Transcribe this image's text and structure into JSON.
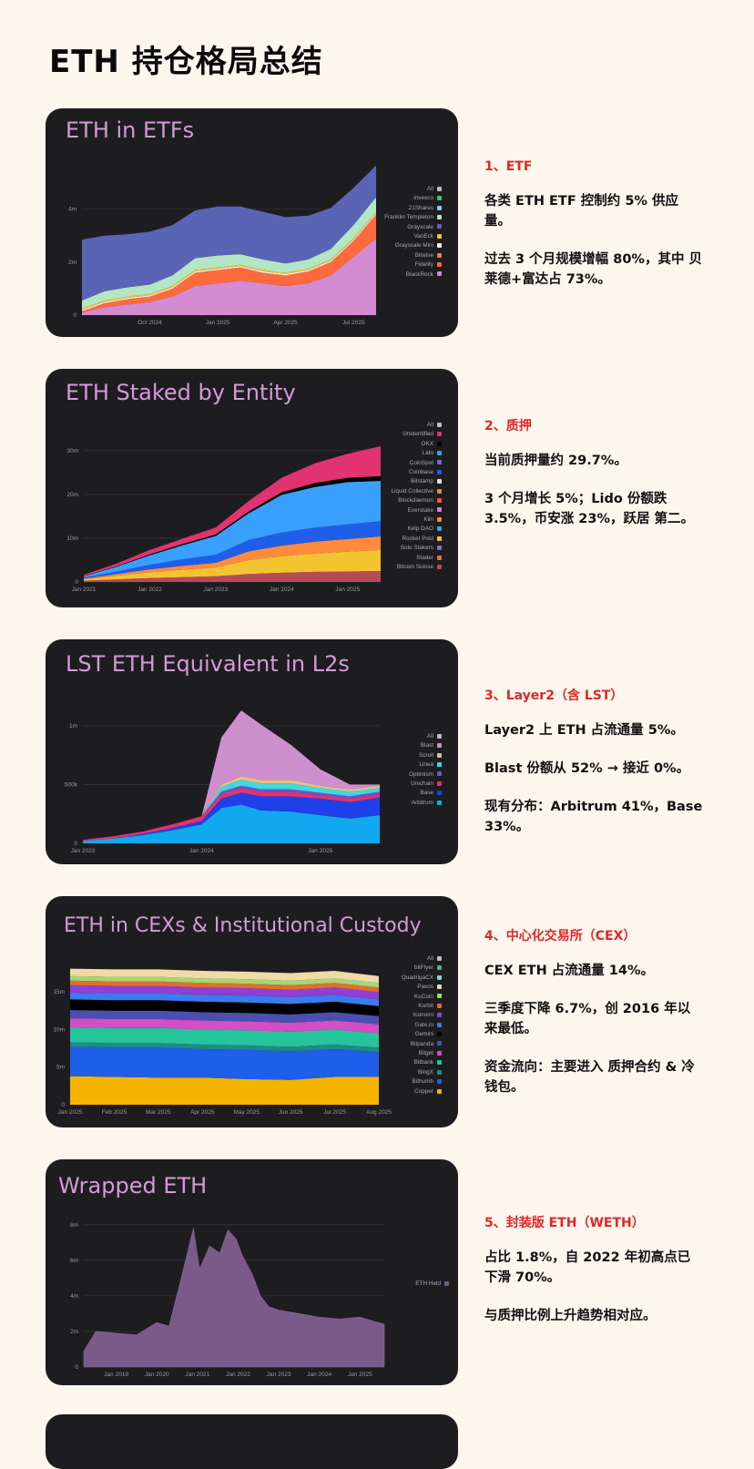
{
  "page": {
    "title": "ETH 持仓格局总结"
  },
  "sections": [
    {
      "heading": "1、ETF",
      "paragraphs": [
        "各类 ETH ETF 控制约 5% 供应量。",
        "过去 3 个月规模增幅 80%，其中 贝莱德+富达占 73%。"
      ]
    },
    {
      "heading": "2、质押",
      "paragraphs": [
        "当前质押量约 29.7%。",
        "3 个月增长 5%；Lido 份额跌 3.5%，币安涨 23%，跃居 第二。"
      ]
    },
    {
      "heading": "3、Layer2（含 LST）",
      "paragraphs": [
        "Layer2 上 ETH 占流通量 5%。",
        "Blast 份额从 52% → 接近 0%。",
        "现有分布：Arbitrum 41%，Base 33%。"
      ]
    },
    {
      "heading": "4、中心化交易所（CEX）",
      "paragraphs": [
        "CEX ETH 占流通量 14%。",
        "三季度下降 6.7%，创 2016 年以来最低。",
        "资金流向：主要进入 质押合约 & 冷钱包。"
      ]
    },
    {
      "heading": "5、封装版 ETH（WETH）",
      "paragraphs": [
        "占比 1.8%，自 2022 年初高点已下滑 70%。",
        "与质押比例上升趋势相对应。"
      ]
    }
  ],
  "colors": {
    "heading_red": "#e0262b",
    "card_bg": "#1d1d1f",
    "title_pink": "#d49ad8"
  },
  "chart_data": [
    {
      "type": "area",
      "title": "ETH in ETFs",
      "stacked": true,
      "x_ticks": [
        "Oct 2024",
        "Jan 2025",
        "Apr 2025",
        "Jul 2025"
      ],
      "y_ticks": [
        "0",
        "2m",
        "4m"
      ],
      "ylim": [
        0,
        5.5
      ],
      "x": [
        "Jul 2024",
        "Aug 2024",
        "Sep 2024",
        "Oct 2024",
        "Nov 2024",
        "Dec 2024",
        "Jan 2025",
        "Feb 2025",
        "Mar 2025",
        "Apr 2025",
        "May 2025",
        "Jun 2025",
        "Jul 2025",
        "Aug 2025"
      ],
      "legend": [
        "All",
        "Invesco",
        "21Shares",
        "Franklin Templeton",
        "Grayscale",
        "VanEck",
        "Grayscale Mini",
        "Bitwise",
        "Fidelity",
        "BlackRock"
      ],
      "series": [
        {
          "name": "BlackRock",
          "color": "#d38bd1",
          "values": [
            0.1,
            0.3,
            0.4,
            0.5,
            0.7,
            1.1,
            1.2,
            1.3,
            1.2,
            1.1,
            1.2,
            1.5,
            2.2,
            2.9
          ]
        },
        {
          "name": "Fidelity",
          "color": "#ff6a3d",
          "values": [
            0.05,
            0.15,
            0.2,
            0.2,
            0.3,
            0.5,
            0.5,
            0.5,
            0.4,
            0.4,
            0.45,
            0.5,
            0.6,
            0.9
          ]
        },
        {
          "name": "Grayscale Mini",
          "color": "#f3f1ef",
          "values": [
            0.05,
            0.05,
            0.05,
            0.05,
            0.05,
            0.05,
            0.05,
            0.05,
            0.05,
            0.05,
            0.05,
            0.05,
            0.05,
            0.05
          ]
        },
        {
          "name": "VanEck",
          "color": "#f4c430",
          "values": [
            0.05,
            0.05,
            0.05,
            0.05,
            0.05,
            0.05,
            0.05,
            0.05,
            0.05,
            0.05,
            0.05,
            0.05,
            0.05,
            0.05
          ]
        },
        {
          "name": "Franklin Templeton",
          "color": "#b3e6c4",
          "values": [
            0.3,
            0.35,
            0.35,
            0.35,
            0.4,
            0.45,
            0.45,
            0.4,
            0.4,
            0.35,
            0.35,
            0.4,
            0.5,
            0.55
          ]
        },
        {
          "name": "Grayscale",
          "color": "#5a64b4",
          "values": [
            2.3,
            2.1,
            2.0,
            2.0,
            1.9,
            1.8,
            1.85,
            1.8,
            1.8,
            1.75,
            1.65,
            1.55,
            1.4,
            1.2
          ]
        }
      ]
    },
    {
      "type": "area",
      "title": "ETH Staked by Entity",
      "stacked": true,
      "x_ticks": [
        "Jan 2021",
        "Jan 2022",
        "Jan 2023",
        "Jan 2024",
        "Jan 2025"
      ],
      "y_ticks": [
        "0",
        "10m",
        "20m",
        "30m"
      ],
      "ylim": [
        0,
        36
      ],
      "x": [
        "Jan 2021",
        "Jul 2021",
        "Jan 2022",
        "Jul 2022",
        "Jan 2023",
        "Jul 2023",
        "Jan 2024",
        "Jul 2024",
        "Jan 2025",
        "Jul 2025"
      ],
      "legend": [
        "All",
        "Unidentified",
        "OKX",
        "Lido",
        "CoinSpot",
        "Coinbase",
        "Bitstamp",
        "Liquid Collective",
        "Blockdaemon",
        "Everstake",
        "Kiln",
        "Kelp DAO",
        "Rocket Pool",
        "Solo Stakers",
        "Stader",
        "Bitcoin Suisse"
      ],
      "series": [
        {
          "name": "Bitcoin Suisse",
          "color": "#b74a5a",
          "values": [
            0.3,
            0.6,
            0.9,
            1.1,
            1.3,
            1.8,
            2.1,
            2.3,
            2.4,
            2.5
          ]
        },
        {
          "name": "Rocket Pool",
          "color": "#f4c430",
          "values": [
            0.3,
            0.8,
            1.3,
            1.7,
            2.0,
            3.2,
            3.8,
            4.2,
            4.5,
            4.8
          ]
        },
        {
          "name": "Kiln",
          "color": "#ff8a3d",
          "values": [
            0.2,
            0.4,
            0.7,
            0.9,
            1.1,
            2.0,
            2.4,
            2.7,
            2.9,
            3.1
          ]
        },
        {
          "name": "Coinbase",
          "color": "#1f5ee8",
          "values": [
            0.2,
            0.6,
            1.0,
            1.5,
            1.8,
            2.6,
            3.0,
            3.2,
            3.4,
            3.5
          ]
        },
        {
          "name": "Lido",
          "color": "#3aa0ff",
          "values": [
            0.3,
            1.1,
            2.2,
            3.2,
            4.3,
            6.1,
            8.6,
            9.3,
            9.6,
            9.2
          ]
        },
        {
          "name": "OKX",
          "color": "#000000",
          "values": [
            0.05,
            0.1,
            0.2,
            0.3,
            0.35,
            0.4,
            0.6,
            0.9,
            1.0,
            1.1
          ]
        },
        {
          "name": "Unidentified",
          "color": "#e0336f",
          "values": [
            0.3,
            0.6,
            1.0,
            1.2,
            1.6,
            2.4,
            3.3,
            4.5,
            5.5,
            6.8
          ]
        }
      ]
    },
    {
      "type": "area",
      "title": "LST ETH Equivalent in L2s",
      "stacked": true,
      "x_ticks": [
        "Jan 2023",
        "Jan 2024",
        "Jan 2025"
      ],
      "y_ticks": [
        "0",
        "500k",
        "1m"
      ],
      "ylim": [
        0,
        1.1
      ],
      "x": [
        "Jan 2023",
        "Apr 2023",
        "Jul 2023",
        "Oct 2023",
        "Jan 2024",
        "Mar 2024",
        "May 2024",
        "Jul 2024",
        "Oct 2024",
        "Jan 2025",
        "Apr 2025",
        "Jul 2025"
      ],
      "legend": [
        "All",
        "Blast",
        "Scroll",
        "Linea",
        "Optimism",
        "Unichain",
        "Base",
        "Arbitrum"
      ],
      "series": [
        {
          "name": "Arbitrum",
          "color": "#12a8f0",
          "values": [
            0.02,
            0.04,
            0.07,
            0.11,
            0.16,
            0.3,
            0.33,
            0.28,
            0.27,
            0.24,
            0.21,
            0.24
          ]
        },
        {
          "name": "Base",
          "color": "#1f3fe8",
          "values": [
            0.0,
            0.0,
            0.01,
            0.02,
            0.03,
            0.08,
            0.1,
            0.12,
            0.13,
            0.14,
            0.14,
            0.15
          ]
        },
        {
          "name": "Unichain",
          "color": "#e0336f",
          "values": [
            0.01,
            0.02,
            0.02,
            0.03,
            0.04,
            0.04,
            0.04,
            0.04,
            0.04,
            0.03,
            0.03,
            0.03
          ]
        },
        {
          "name": "Optimism",
          "color": "#6a55d4",
          "values": [
            0.0,
            0.0,
            0.0,
            0.0,
            0.0,
            0.02,
            0.02,
            0.02,
            0.02,
            0.02,
            0.02,
            0.02
          ]
        },
        {
          "name": "Linea",
          "color": "#3fd9e0",
          "values": [
            0.0,
            0.0,
            0.0,
            0.0,
            0.0,
            0.04,
            0.05,
            0.05,
            0.05,
            0.04,
            0.04,
            0.03
          ]
        },
        {
          "name": "Scroll",
          "color": "#e8c08a",
          "values": [
            0.0,
            0.0,
            0.0,
            0.0,
            0.0,
            0.02,
            0.03,
            0.03,
            0.03,
            0.02,
            0.02,
            0.02
          ]
        },
        {
          "name": "Blast",
          "color": "#cf8fcf",
          "values": [
            0.0,
            0.0,
            0.0,
            0.0,
            0.0,
            0.4,
            0.56,
            0.47,
            0.3,
            0.14,
            0.04,
            0.01
          ]
        }
      ]
    },
    {
      "type": "area",
      "title": "ETH in CEXs & Institutional Custody",
      "stacked": true,
      "x_ticks": [
        "Jan 2025",
        "Feb 2025",
        "Mar 2025",
        "Apr 2025",
        "May 2025",
        "Jun 2025",
        "Jul 2025",
        "Aug 2025"
      ],
      "y_ticks": [
        "0",
        "5m",
        "10m",
        "15m"
      ],
      "ylim": [
        0,
        19.5
      ],
      "x": [
        "Jan 2025",
        "Feb 2025",
        "Mar 2025",
        "Apr 2025",
        "May 2025",
        "Jun 2025",
        "Jul 2025",
        "Aug 2025"
      ],
      "legend": [
        "All",
        "bitFlyer",
        "QuadrigaCX",
        "Paxos",
        "KuCoin",
        "Korbit",
        "Iconomi",
        "Gate.io",
        "Gemini",
        "Bitpanda",
        "Bitget",
        "Bitbank",
        "BingX",
        "Bithumb",
        "Copper"
      ],
      "series": [
        {
          "name": "Copper",
          "color": "#f4b400",
          "values": [
            3.8,
            3.7,
            3.6,
            3.6,
            3.4,
            3.3,
            3.7,
            3.7
          ]
        },
        {
          "name": "Bithumb",
          "color": "#1f5ee8",
          "values": [
            3.9,
            3.9,
            4.0,
            3.8,
            3.9,
            3.8,
            3.7,
            3.3
          ]
        },
        {
          "name": "BingX",
          "color": "#1e8a8a",
          "values": [
            0.6,
            0.6,
            0.6,
            0.6,
            0.6,
            0.6,
            0.6,
            0.6
          ]
        },
        {
          "name": "Bitbank",
          "color": "#26c49a",
          "values": [
            2.0,
            2.0,
            2.0,
            2.0,
            2.0,
            2.0,
            2.0,
            1.9
          ]
        },
        {
          "name": "Bitget",
          "color": "#d24fc6",
          "values": [
            1.2,
            1.2,
            1.2,
            1.2,
            1.2,
            1.2,
            1.2,
            1.2
          ]
        },
        {
          "name": "Bitpanda",
          "color": "#4a4fb0",
          "values": [
            1.1,
            1.1,
            1.1,
            1.1,
            1.1,
            1.1,
            1.1,
            1.1
          ]
        },
        {
          "name": "Gemini",
          "color": "#000000",
          "values": [
            1.4,
            1.4,
            1.4,
            1.4,
            1.4,
            1.4,
            1.4,
            1.3
          ]
        },
        {
          "name": "Gate.io",
          "color": "#3b7bf0",
          "values": [
            0.9,
            0.9,
            0.9,
            0.9,
            0.9,
            0.9,
            0.9,
            0.9
          ]
        },
        {
          "name": "Iconomi",
          "color": "#8f3fd4",
          "values": [
            1.0,
            1.0,
            1.0,
            1.0,
            1.0,
            1.0,
            1.0,
            1.0
          ]
        },
        {
          "name": "Korbit",
          "color": "#e46d2c",
          "values": [
            0.6,
            0.6,
            0.6,
            0.6,
            0.6,
            0.6,
            0.6,
            0.6
          ]
        },
        {
          "name": "KuCoin",
          "color": "#a3d873",
          "values": [
            0.6,
            0.6,
            0.6,
            0.6,
            0.6,
            0.6,
            0.6,
            0.6
          ]
        },
        {
          "name": "Paxos",
          "color": "#f1d9a8",
          "values": [
            1.0,
            1.0,
            1.0,
            1.0,
            1.0,
            1.0,
            1.0,
            0.9
          ]
        }
      ]
    },
    {
      "type": "area",
      "title": "Wrapped ETH",
      "stacked": false,
      "x_ticks": [
        "Jan 2019",
        "Jan 2020",
        "Jan 2021",
        "Jan 2022",
        "Jan 2023",
        "Jan 2024",
        "Jan 2025"
      ],
      "y_ticks": [
        "0",
        "2m",
        "4m",
        "6m",
        "8m"
      ],
      "ylim": [
        0,
        8.5
      ],
      "legend": [
        "ETH Held"
      ],
      "series": [
        {
          "name": "ETH Held",
          "color": "#7a5a88",
          "x": [
            2018.2,
            2018.5,
            2019.0,
            2019.5,
            2020.0,
            2020.3,
            2020.6,
            2020.9,
            2021.05,
            2021.3,
            2021.55,
            2021.75,
            2021.95,
            2022.1,
            2022.35,
            2022.55,
            2022.75,
            2023.0,
            2023.5,
            2024.0,
            2024.5,
            2025.0,
            2025.3,
            2025.6
          ],
          "values": [
            0.9,
            2.0,
            1.9,
            1.8,
            2.5,
            2.3,
            5.0,
            7.8,
            5.5,
            6.8,
            6.4,
            7.7,
            7.2,
            6.3,
            5.2,
            4.0,
            3.4,
            3.2,
            3.0,
            2.8,
            2.7,
            2.8,
            2.6,
            2.4
          ]
        }
      ]
    }
  ]
}
